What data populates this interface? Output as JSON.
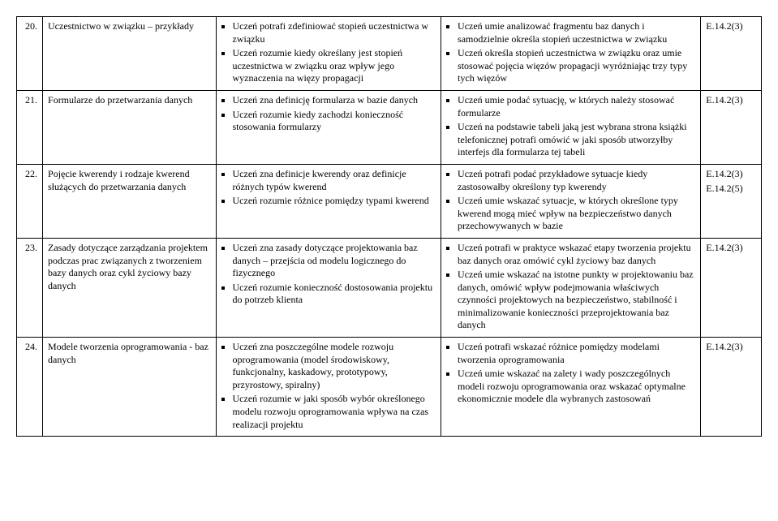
{
  "rows": [
    {
      "num": "20.",
      "topic": "Uczestnictwo w związku – przykłady",
      "col3": [
        "Uczeń potrafi zdefiniować stopień uczestnictwa w związku",
        "Uczeń rozumie kiedy określany jest stopień uczestnictwa w związku oraz wpływ jego wyznaczenia na więzy propagacji"
      ],
      "col4": [
        "Uczeń umie analizować fragmentu baz danych i samodzielnie określa stopień uczestnictwa w związku",
        "Uczeń określa stopień uczestnictwa w związku oraz umie stosować pojęcia więzów propagacji wyróżniając trzy typy tych więzów"
      ],
      "codes": [
        "E.14.2(3)"
      ]
    },
    {
      "num": "21.",
      "topic": "Formularze do przetwarzania danych",
      "col3": [
        "Uczeń zna definicję formularza w bazie danych",
        "Uczeń rozumie kiedy zachodzi konieczność stosowania formularzy"
      ],
      "col4": [
        "Uczeń umie podać sytuację, w których należy stosować formularze",
        "Uczeń na podstawie tabeli jaką jest wybrana strona książki telefonicznej potrafi omówić w jaki sposób utworzyłby interfejs dla formularza tej tabeli"
      ],
      "codes": [
        "E.14.2(3)"
      ]
    },
    {
      "num": "22.",
      "topic": "Pojęcie kwerendy i rodzaje kwerend służących do przetwarzania danych",
      "col3": [
        "Uczeń zna definicje kwerendy oraz definicje różnych typów kwerend",
        "Uczeń rozumie różnice pomiędzy typami kwerend"
      ],
      "col4": [
        "Uczeń potrafi podać przykładowe sytuacje kiedy zastosowałby określony typ kwerendy",
        "Uczeń umie wskazać sytuacje, w których określone typy kwerend mogą mieć wpływ na bezpieczeństwo danych przechowywanych w bazie"
      ],
      "codes": [
        "E.14.2(3)",
        "E.14.2(5)"
      ]
    },
    {
      "num": "23.",
      "topic": "Zasady dotyczące zarządzania projektem podczas prac związanych z tworzeniem bazy danych oraz cykl życiowy bazy danych",
      "col3": [
        "Uczeń zna zasady dotyczące projektowania baz danych – przejścia od modelu logicznego do fizycznego",
        "Uczeń rozumie konieczność dostosowania projektu do potrzeb klienta"
      ],
      "col4": [
        "Uczeń potrafi w praktyce wskazać etapy tworzenia projektu baz danych oraz omówić cykl życiowy baz danych",
        "Uczeń umie wskazać na istotne punkty w projektowaniu baz danych, omówić wpływ podejmowania właściwych czynności projektowych na bezpieczeństwo, stabilność i minimalizowanie konieczności przeprojektowania baz danych"
      ],
      "codes": [
        "E.14.2(3)"
      ]
    },
    {
      "num": "24.",
      "topic": "Modele tworzenia oprogramowania - baz danych",
      "col3": [
        "Uczeń zna poszczególne modele rozwoju oprogramowania (model środowiskowy, funkcjonalny, kaskadowy, prototypowy, przyrostowy, spiralny)",
        "Uczeń rozumie w jaki sposób wybór określonego modelu rozwoju oprogramowania wpływa na czas realizacji projektu"
      ],
      "col4": [
        "Uczeń potrafi wskazać różnice pomiędzy modelami tworzenia oprogramowania",
        "Uczeń umie wskazać na zalety i wady poszczególnych modeli rozwoju oprogramowania oraz wskazać optymalne ekonomicznie modele dla wybranych zastosowań"
      ],
      "codes": [
        "E.14.2(3)"
      ]
    }
  ]
}
